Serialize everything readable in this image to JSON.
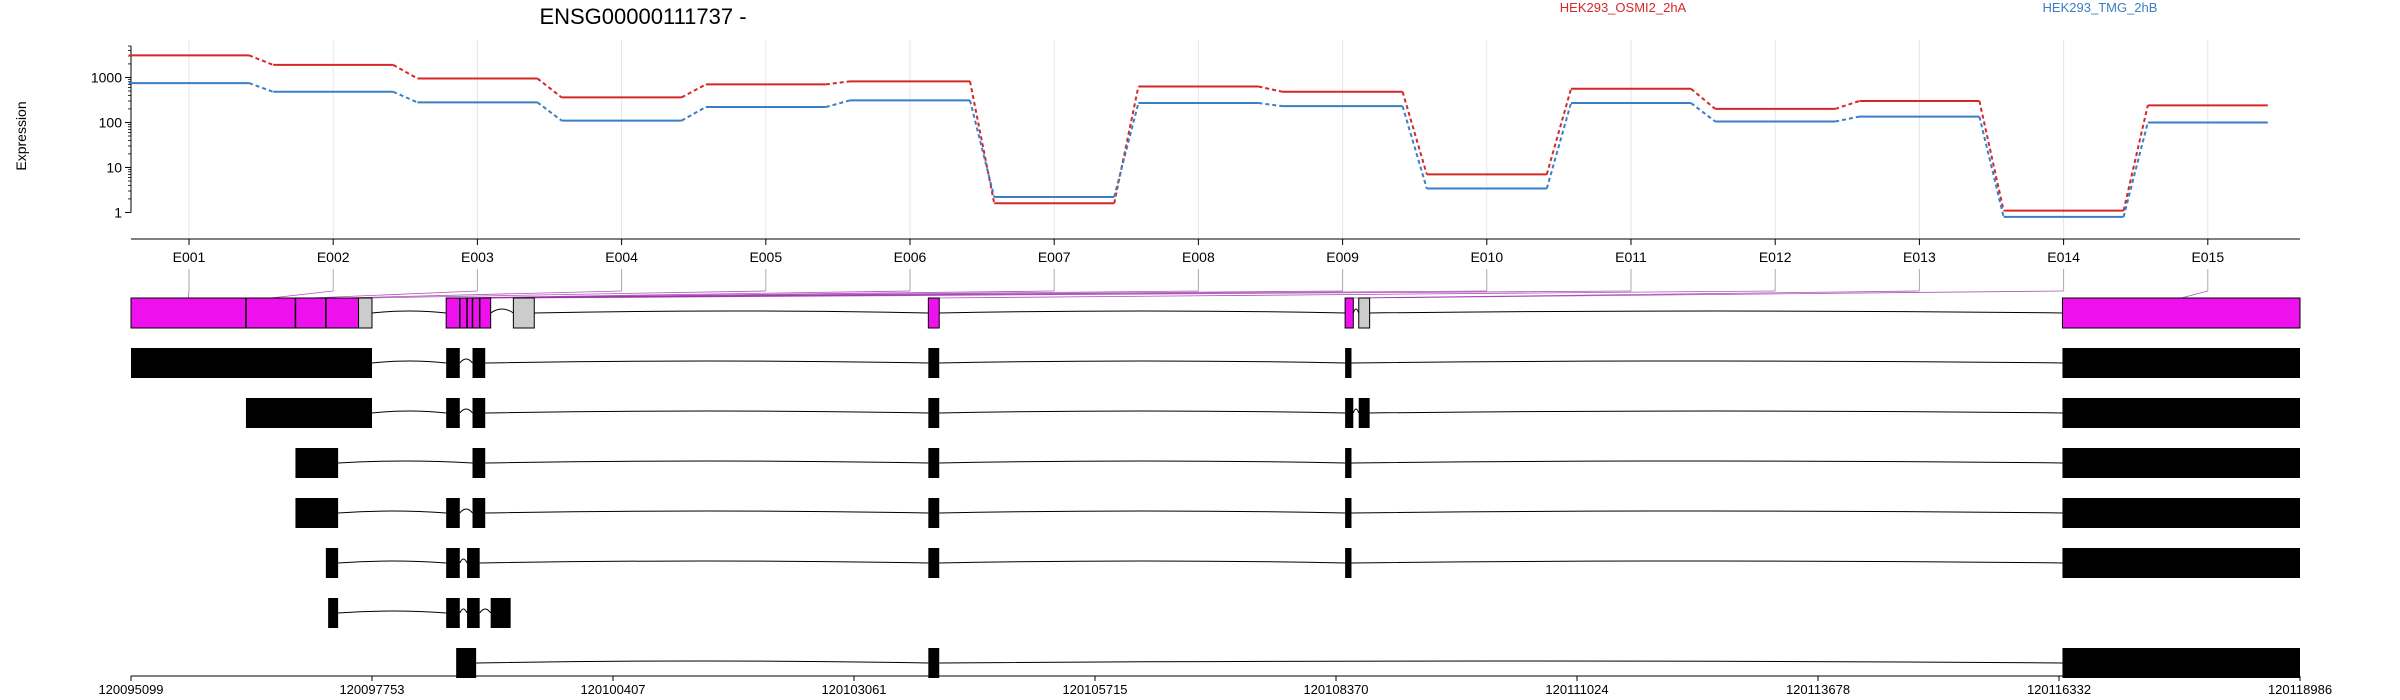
{
  "chart_data": {
    "type": "line",
    "title": "ENSG00000111737 -",
    "ylabel": "Expression",
    "yscale": "log",
    "ylim": [
      0.5,
      5000
    ],
    "y_ticks": [
      {
        "value": 1,
        "label": "1"
      },
      {
        "value": 10,
        "label": "10"
      },
      {
        "value": 100,
        "label": "100"
      },
      {
        "value": 1000,
        "label": "1000"
      }
    ],
    "categories": [
      "E001",
      "E002",
      "E003",
      "E004",
      "E005",
      "E006",
      "E007",
      "E008",
      "E009",
      "E010",
      "E011",
      "E012",
      "E013",
      "E014",
      "E015"
    ],
    "series": [
      {
        "name": "HEK293_OSMI2_2hA",
        "color": "#d62728",
        "values": [
          3100,
          1900,
          950,
          360,
          700,
          820,
          1.6,
          630,
          480,
          7,
          560,
          200,
          300,
          1.1,
          240
        ]
      },
      {
        "name": "HEK293_TMG_2hB",
        "color": "#3a7ec4",
        "values": [
          750,
          480,
          280,
          110,
          220,
          310,
          2.2,
          270,
          230,
          3.4,
          270,
          105,
          135,
          0.8,
          100
        ]
      }
    ],
    "legend_position": "top-right",
    "grid": "vertical"
  },
  "gene_model": {
    "genomic_ticks": [
      "120095099",
      "120097753",
      "120100407",
      "120103061",
      "120105715",
      "120108370",
      "120111024",
      "120113678",
      "120116332",
      "120118986"
    ],
    "genomic_range": [
      120095099,
      120118986
    ],
    "highlight_color": "#ee11ee",
    "neutral_color": "#cccccc",
    "exon_bins": [
      [
        120095099,
        120096365
      ],
      [
        120096365,
        120096910
      ],
      [
        120096910,
        120097245
      ],
      [
        120097245,
        120097605
      ],
      [
        120097605,
        120097753
      ],
      [
        120098570,
        120098720
      ],
      [
        120098720,
        120098800
      ],
      [
        120098800,
        120098860
      ],
      [
        120098860,
        120098939
      ],
      [
        120098939,
        120099060
      ],
      [
        120099310,
        120099540
      ],
      [
        120103880,
        120104000
      ],
      [
        120108470,
        120108560
      ],
      [
        120108620,
        120108740
      ],
      [
        120116370,
        120118986
      ]
    ],
    "flat_exons": [
      {
        "start": 120095099,
        "end": 120097605,
        "hl": true
      },
      {
        "start": 120097605,
        "end": 120097753,
        "hl": false
      },
      {
        "start": 120098570,
        "end": 120099060,
        "hl": true
      },
      {
        "start": 120099310,
        "end": 120099540,
        "hl": false
      },
      {
        "start": 120103880,
        "end": 120104000,
        "hl": true
      },
      {
        "start": 120108470,
        "end": 120108560,
        "hl": true
      },
      {
        "start": 120108620,
        "end": 120108740,
        "hl": false
      },
      {
        "start": 120116370,
        "end": 120118986,
        "hl": true
      }
    ],
    "bin_dividers": [
      120096365,
      120096910,
      120097245,
      120098720,
      120098800,
      120098860,
      120098939
    ],
    "transcripts": [
      [
        [
          120095099,
          120097753
        ],
        [
          120098570,
          120098720
        ],
        [
          120098860,
          120099000
        ],
        [
          120103880,
          120104000
        ],
        [
          120108470,
          120108540
        ],
        [
          120116370,
          120118986
        ]
      ],
      [
        [
          120096365,
          120097753
        ],
        [
          120098570,
          120098720
        ],
        [
          120098860,
          120099000
        ],
        [
          120103880,
          120104000
        ],
        [
          120108470,
          120108560
        ],
        [
          120108620,
          120108740
        ],
        [
          120116370,
          120118986
        ]
      ],
      [
        [
          120096910,
          120097380
        ],
        [
          120098860,
          120099000
        ],
        [
          120103880,
          120104000
        ],
        [
          120108470,
          120108540
        ],
        [
          120116370,
          120118986
        ]
      ],
      [
        [
          120096910,
          120097380
        ],
        [
          120098570,
          120098720
        ],
        [
          120098860,
          120099000
        ],
        [
          120103880,
          120104000
        ],
        [
          120108470,
          120108540
        ],
        [
          120116370,
          120118986
        ]
      ],
      [
        [
          120097245,
          120097380
        ],
        [
          120098570,
          120098720
        ],
        [
          120098800,
          120098939
        ],
        [
          120103880,
          120104000
        ],
        [
          120108470,
          120108540
        ],
        [
          120116370,
          120118986
        ]
      ],
      [
        [
          120097270,
          120097380
        ],
        [
          120098570,
          120098720
        ],
        [
          120098800,
          120098939
        ],
        [
          120099060,
          120099280
        ]
      ],
      [
        [
          120098680,
          120098900
        ],
        [
          120103880,
          120104000
        ],
        [
          120116370,
          120118986
        ]
      ]
    ]
  }
}
